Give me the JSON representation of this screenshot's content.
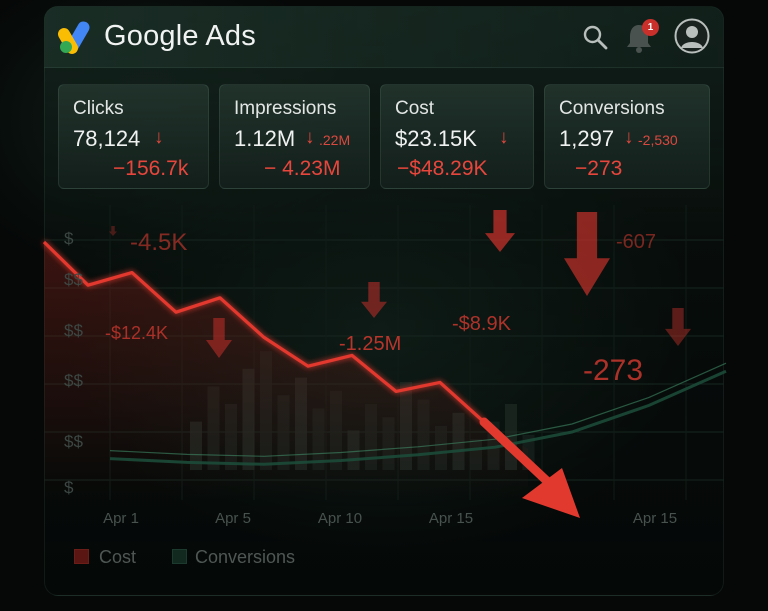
{
  "app": {
    "brand": "Google Ads",
    "notification_count": "1",
    "icons": [
      "google-ads-logo",
      "search-icon",
      "bell-icon",
      "avatar-icon"
    ]
  },
  "metrics": [
    {
      "label": "Clicks",
      "value": "78,124",
      "arrow": "↓",
      "sub": "",
      "delta": "−156.7k"
    },
    {
      "label": "Impressions",
      "value": "1.12M",
      "arrow": "↓",
      "sub": ".22M",
      "delta": "− 4.23M"
    },
    {
      "label": "Cost",
      "value": "$23.15K",
      "arrow": "↓",
      "sub": "",
      "delta": "−$48.29K"
    },
    {
      "label": "Conversions",
      "value": "1,297",
      "arrow": "↓",
      "sub": "-2,530",
      "delta": "−273"
    }
  ],
  "chart_data": {
    "type": "line",
    "x_ticks": [
      "Apr 1",
      "Apr 5",
      "Apr 10",
      "Apr 15",
      "Apr 15"
    ],
    "y_ticks": [
      "$",
      "$$",
      "$$",
      "$$",
      "$$",
      "$"
    ],
    "series": [
      {
        "name": "Cost",
        "color": "#e2392f",
        "values": [
          100,
          76,
          83,
          61,
          69,
          47,
          31,
          37,
          17,
          22,
          0,
          -15
        ]
      },
      {
        "name": "Conversions",
        "color": "#1c4a39",
        "values": [
          6,
          4,
          3,
          5,
          8,
          12,
          20,
          34,
          52
        ]
      }
    ],
    "bars": [
      22,
      38,
      30,
      46,
      54,
      34,
      42,
      28,
      36,
      18,
      30,
      24,
      40,
      32,
      20,
      26,
      14,
      22,
      30,
      16
    ],
    "annotations": [
      "-4.5K",
      "-$12.4K",
      "-1.25M",
      "-$8.9K",
      "-607",
      "-273"
    ],
    "legend": [
      "Cost",
      "Conversions"
    ]
  },
  "colors": {
    "accent_red": "#e2392f",
    "accent_green": "#1c4a39",
    "background": "#050807"
  }
}
